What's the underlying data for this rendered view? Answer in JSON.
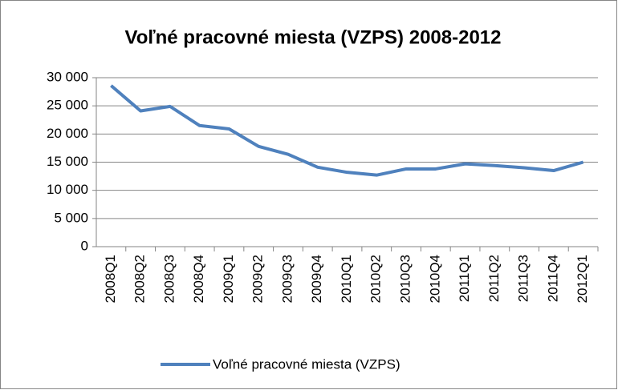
{
  "chart_data": {
    "type": "line",
    "title": "Voľné pracovné miesta (VZPS)  2008-2012",
    "categories": [
      "2008Q1",
      "2008Q2",
      "2008Q3",
      "2008Q4",
      "2009Q1",
      "2009Q2",
      "2009Q3",
      "2009Q4",
      "2010Q1",
      "2010Q2",
      "2010Q3",
      "2010Q4",
      "2011Q1",
      "2011Q2",
      "2011Q3",
      "2011Q4",
      "2012Q1"
    ],
    "series": [
      {
        "name": "Voľné pracovné miesta (VZPS)",
        "color": "#4f81bd",
        "values": [
          28600,
          24100,
          24900,
          21500,
          20900,
          17800,
          16400,
          14100,
          13200,
          12700,
          13800,
          13800,
          14700,
          14400,
          14000,
          13500,
          15000
        ]
      }
    ],
    "ylim": [
      0,
      30000
    ],
    "yticks": [
      0,
      {
        "value": 5000,
        "label": "5 000"
      },
      {
        "value": 10000,
        "label": "10 000"
      },
      {
        "value": 15000,
        "label": "15 000"
      },
      {
        "value": 20000,
        "label": "20 000"
      },
      {
        "value": 25000,
        "label": "25 000"
      },
      {
        "value": 30000,
        "label": "30 000"
      }
    ],
    "grid": true,
    "legend": "bottom"
  }
}
